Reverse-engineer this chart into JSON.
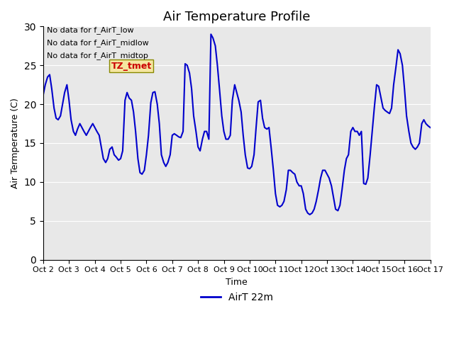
{
  "title": "Air Temperature Profile",
  "xlabel": "Time",
  "ylabel": "Air Termperature (C)",
  "xlim_days": [
    0,
    15
  ],
  "ylim": [
    0,
    30
  ],
  "yticks": [
    0,
    5,
    10,
    15,
    20,
    25,
    30
  ],
  "xtick_labels": [
    "Oct 2",
    "Oct 3",
    "Oct 4",
    "Oct 5",
    "Oct 6",
    "Oct 7",
    "Oct 8",
    "Oct 9",
    "Oct 10",
    "Oct 11",
    "Oct 12",
    "Oct 13",
    "Oct 14",
    "Oct 15",
    "Oct 16",
    "Oct 17"
  ],
  "line_color": "#0000cc",
  "line_width": 1.5,
  "background_color": "#e8e8e8",
  "legend_label": "AirT 22m",
  "annotation_lines": [
    "No data for f_AirT_low",
    "No data for f_AirT_midlow",
    "No data for f_AirT_midtop"
  ],
  "annotation_color": "#000000",
  "tz_label": "TZ_tmet",
  "tz_color": "#cc0000",
  "tz_bg": "#f5e6a0",
  "time_data": [
    0.0,
    0.08,
    0.17,
    0.25,
    0.33,
    0.42,
    0.5,
    0.58,
    0.67,
    0.75,
    0.83,
    0.92,
    1.0,
    1.08,
    1.17,
    1.25,
    1.33,
    1.42,
    1.5,
    1.58,
    1.67,
    1.75,
    1.83,
    1.92,
    2.0,
    2.08,
    2.17,
    2.25,
    2.33,
    2.42,
    2.5,
    2.58,
    2.67,
    2.75,
    2.83,
    2.92,
    3.0,
    3.08,
    3.17,
    3.25,
    3.33,
    3.42,
    3.5,
    3.58,
    3.67,
    3.75,
    3.83,
    3.92,
    4.0,
    4.08,
    4.17,
    4.25,
    4.33,
    4.42,
    4.5,
    4.58,
    4.67,
    4.75,
    4.83,
    4.92,
    5.0,
    5.08,
    5.17,
    5.25,
    5.33,
    5.42,
    5.5,
    5.58,
    5.67,
    5.75,
    5.83,
    5.92,
    6.0,
    6.08,
    6.17,
    6.25,
    6.33,
    6.42,
    6.5,
    6.58,
    6.67,
    6.75,
    6.83,
    6.92,
    7.0,
    7.08,
    7.17,
    7.25,
    7.33,
    7.42,
    7.5,
    7.58,
    7.67,
    7.75,
    7.83,
    7.92,
    8.0,
    8.08,
    8.17,
    8.25,
    8.33,
    8.42,
    8.5,
    8.58,
    8.67,
    8.75,
    8.83,
    8.92,
    9.0,
    9.08,
    9.17,
    9.25,
    9.33,
    9.42,
    9.5,
    9.58,
    9.67,
    9.75,
    9.83,
    9.92,
    10.0,
    10.08,
    10.17,
    10.25,
    10.33,
    10.42,
    10.5,
    10.58,
    10.67,
    10.75,
    10.83,
    10.92,
    11.0,
    11.08,
    11.17,
    11.25,
    11.33,
    11.42,
    11.5,
    11.58,
    11.67,
    11.75,
    11.83,
    11.92,
    12.0,
    12.08,
    12.17,
    12.25,
    12.33,
    12.42,
    12.5,
    12.58,
    12.67,
    12.75,
    12.83,
    12.92,
    13.0,
    13.08,
    13.17,
    13.25,
    13.33,
    13.42,
    13.5,
    13.58,
    13.67,
    13.75,
    13.83,
    13.92,
    14.0,
    14.08,
    14.17,
    14.25,
    14.33,
    14.42,
    14.5,
    14.58,
    14.67,
    14.75,
    14.83,
    14.92,
    15.0
  ],
  "temp_data": [
    21.2,
    22.5,
    23.5,
    23.8,
    22.0,
    19.5,
    18.2,
    18.0,
    18.5,
    20.0,
    21.5,
    22.5,
    20.5,
    18.0,
    16.5,
    16.0,
    16.8,
    17.5,
    17.0,
    16.5,
    16.0,
    16.5,
    17.0,
    17.5,
    17.0,
    16.5,
    16.0,
    14.5,
    13.0,
    12.5,
    13.0,
    14.2,
    14.5,
    13.5,
    13.2,
    12.8,
    13.0,
    14.0,
    20.5,
    21.5,
    20.8,
    20.5,
    19.0,
    16.5,
    13.0,
    11.2,
    11.0,
    11.5,
    13.5,
    16.0,
    20.2,
    21.5,
    21.6,
    20.0,
    17.5,
    13.5,
    12.5,
    12.0,
    12.5,
    13.5,
    16.0,
    16.2,
    16.0,
    15.8,
    15.7,
    16.5,
    25.2,
    25.0,
    24.0,
    22.0,
    18.5,
    16.5,
    14.5,
    14.0,
    15.5,
    16.5,
    16.5,
    15.5,
    29.0,
    28.5,
    27.5,
    25.0,
    22.0,
    18.5,
    16.5,
    15.5,
    15.5,
    16.0,
    20.5,
    22.5,
    21.5,
    20.5,
    19.0,
    16.0,
    13.5,
    11.8,
    11.7,
    12.0,
    13.5,
    17.0,
    20.3,
    20.5,
    18.2,
    17.0,
    16.8,
    17.0,
    14.5,
    11.5,
    8.5,
    7.0,
    6.8,
    7.0,
    7.5,
    9.0,
    11.5,
    11.5,
    11.2,
    11.0,
    10.0,
    9.5,
    9.5,
    8.5,
    6.5,
    6.0,
    5.8,
    6.0,
    6.5,
    7.5,
    9.0,
    10.5,
    11.5,
    11.5,
    11.0,
    10.5,
    9.5,
    8.0,
    6.5,
    6.3,
    7.0,
    9.0,
    11.5,
    13.0,
    13.5,
    16.5,
    17.0,
    16.5,
    16.5,
    16.0,
    16.5,
    9.8,
    9.7,
    10.5,
    13.5,
    16.5,
    19.5,
    22.5,
    22.3,
    21.0,
    19.5,
    19.2,
    19.0,
    18.8,
    19.5,
    22.5,
    24.8,
    27.0,
    26.5,
    25.0,
    22.0,
    18.5,
    16.5,
    15.0,
    14.5,
    14.2,
    14.5,
    15.0,
    17.5,
    18.0,
    17.5,
    17.2,
    17.0
  ]
}
